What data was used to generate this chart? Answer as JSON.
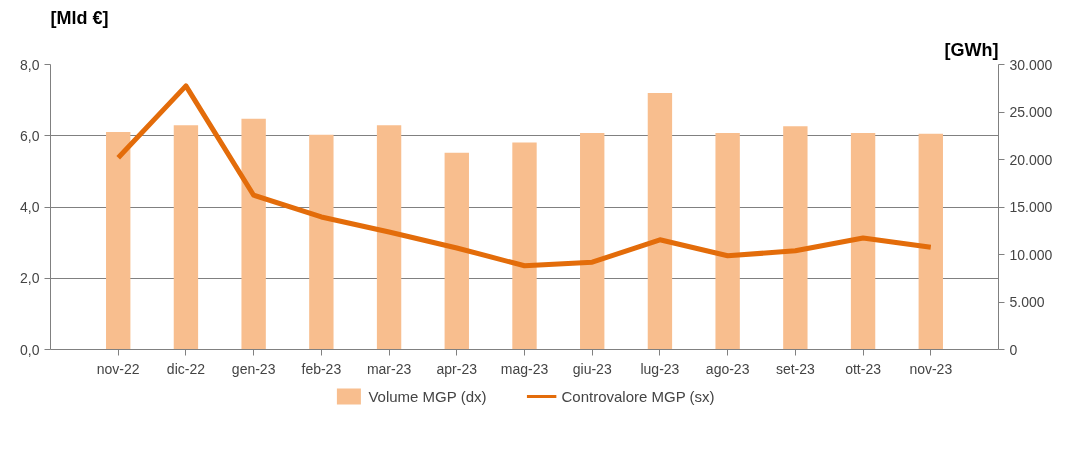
{
  "chart_data": {
    "type": "bar",
    "ylabel": "[Mld €]",
    "y2label": "[GWh]",
    "categories": [
      "nov-22",
      "dic-22",
      "gen-23",
      "feb-23",
      "mar-23",
      "apr-23",
      "mag-23",
      "giu-23",
      "lug-23",
      "ago-23",
      "set-23",
      "ott-23",
      "nov-23"
    ],
    "series": [
      {
        "name": "Volume MGP (dx)",
        "axis": "y2",
        "color": "#f8be8e",
        "values": [
          22900,
          23600,
          24300,
          22600,
          23600,
          20700,
          21800,
          22800,
          27000,
          22800,
          23500,
          22800,
          22700
        ]
      },
      {
        "name": "Controvalore MGP (sx)",
        "type": "line",
        "color": "#e36c0a",
        "values": [
          5.38,
          7.4,
          4.33,
          3.72,
          3.3,
          2.85,
          2.35,
          2.45,
          3.08,
          2.63,
          2.77,
          3.13,
          2.87
        ]
      }
    ],
    "ylim": [
      0,
      8
    ],
    "yticks": [
      {
        "value": 0,
        "label": "0,0"
      },
      {
        "value": 2,
        "label": "2,0"
      },
      {
        "value": 4,
        "label": "4,0"
      },
      {
        "value": 6,
        "label": "6,0"
      },
      {
        "value": 8,
        "label": "8,0"
      }
    ],
    "y2lim": [
      0,
      30000
    ],
    "y2ticks": [
      0,
      {
        "value": 5000,
        "label": "5.000"
      },
      {
        "value": 10000,
        "label": "10.000"
      },
      {
        "value": 15000,
        "label": "15.000"
      },
      {
        "value": 20000,
        "label": "20.000"
      },
      {
        "value": 25000,
        "label": "25.000"
      },
      {
        "value": 30000,
        "label": "30.000"
      }
    ],
    "grid": "y",
    "legend": "bottom",
    "line_style": "solid",
    "marker": "none"
  }
}
